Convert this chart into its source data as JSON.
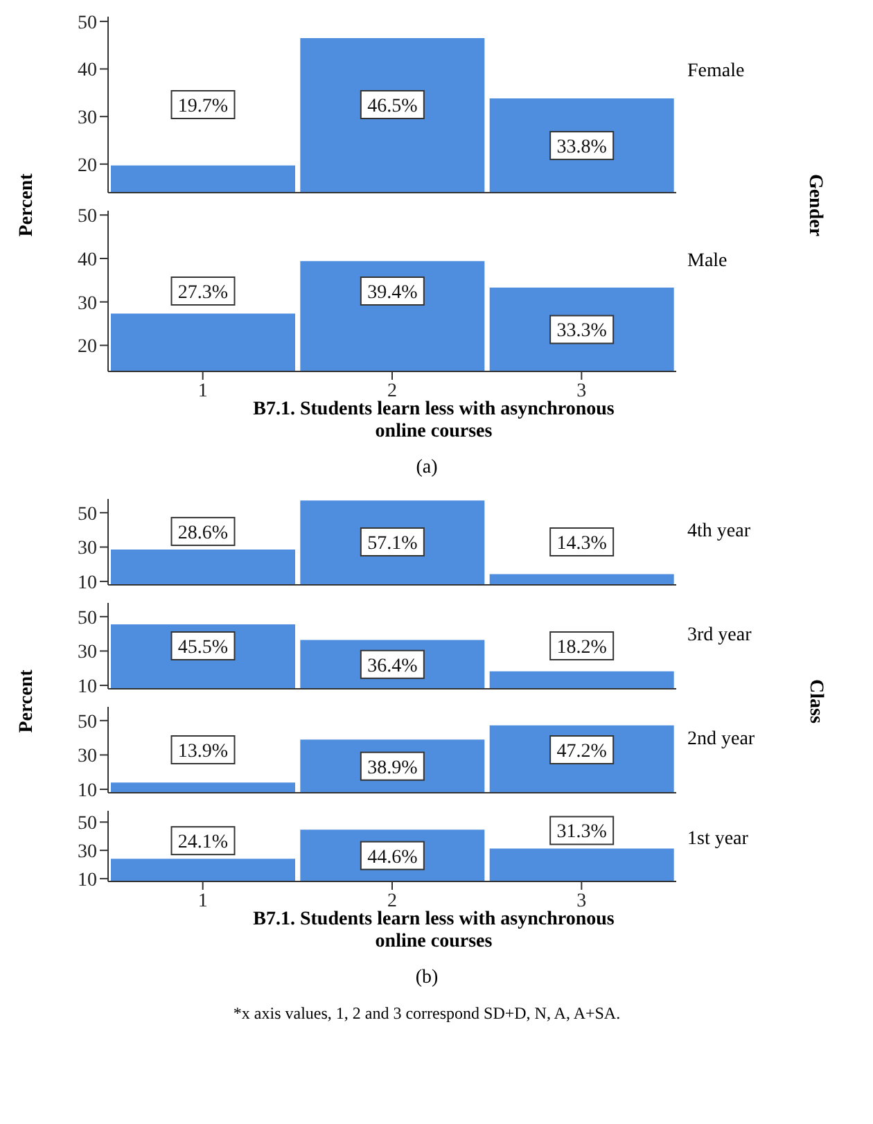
{
  "chart_data": [
    {
      "type": "bar",
      "categories": [
        "1",
        "2",
        "3"
      ],
      "values": [
        19.7,
        46.5,
        33.8
      ],
      "value_labels": [
        "19.7%",
        "46.5%",
        "33.8%"
      ],
      "color": "#4f8ede",
      "ylim": [
        14,
        51
      ],
      "yticks": [
        20,
        30,
        40,
        50
      ],
      "tick_labels": "y",
      "ylabel": "Percent",
      "y2label": "Gender",
      "annotations": [
        "Female"
      ]
    },
    {
      "type": "bar",
      "categories": [
        "1",
        "2",
        "3"
      ],
      "values": [
        27.3,
        39.4,
        33.3
      ],
      "value_labels": [
        "27.3%",
        "39.4%",
        "33.3%"
      ],
      "color": "#4f8ede",
      "ylim": [
        14,
        51
      ],
      "yticks": [
        20,
        30,
        40,
        50
      ],
      "xlabel": "B7.1. Students learn less with asynchronous online courses",
      "annotations": [
        "Male",
        "(a)"
      ]
    },
    {
      "type": "bar",
      "categories": [
        "1",
        "2",
        "3"
      ],
      "values": [
        28.6,
        57.1,
        14.3
      ],
      "value_labels": [
        "28.6%",
        "57.1%",
        "14.3%"
      ],
      "color": "#4f8ede",
      "ylim": [
        8,
        58
      ],
      "yticks": [
        10,
        30,
        50
      ],
      "tick_labels": "y",
      "ylabel": "Percent",
      "y2label": "Class",
      "annotations": [
        "4th year"
      ]
    },
    {
      "type": "bar",
      "categories": [
        "1",
        "2",
        "3"
      ],
      "values": [
        45.5,
        36.4,
        18.2
      ],
      "value_labels": [
        "45.5%",
        "36.4%",
        "18.2%"
      ],
      "color": "#4f8ede",
      "ylim": [
        8,
        58
      ],
      "yticks": [
        10,
        30,
        50
      ],
      "tick_labels": "y",
      "annotations": [
        "3rd year"
      ]
    },
    {
      "type": "bar",
      "categories": [
        "1",
        "2",
        "3"
      ],
      "values": [
        13.9,
        38.9,
        47.2
      ],
      "value_labels": [
        "13.9%",
        "38.9%",
        "47.2%"
      ],
      "color": "#4f8ede",
      "ylim": [
        8,
        58
      ],
      "yticks": [
        10,
        30,
        50
      ],
      "tick_labels": "y",
      "annotations": [
        "2nd year"
      ]
    },
    {
      "type": "bar",
      "categories": [
        "1",
        "2",
        "3"
      ],
      "values": [
        24.1,
        44.6,
        31.3
      ],
      "value_labels": [
        "24.1%",
        "44.6%",
        "31.3%"
      ],
      "color": "#4f8ede",
      "ylim": [
        8,
        58
      ],
      "yticks": [
        10,
        30,
        50
      ],
      "xlabel": "B7.1. Students learn less with asynchronous online courses",
      "annotations": [
        "1st year",
        "(b)",
        "*x axis values, 1, 2 and 3 correspond SD+D, N, A, A+SA."
      ]
    }
  ]
}
